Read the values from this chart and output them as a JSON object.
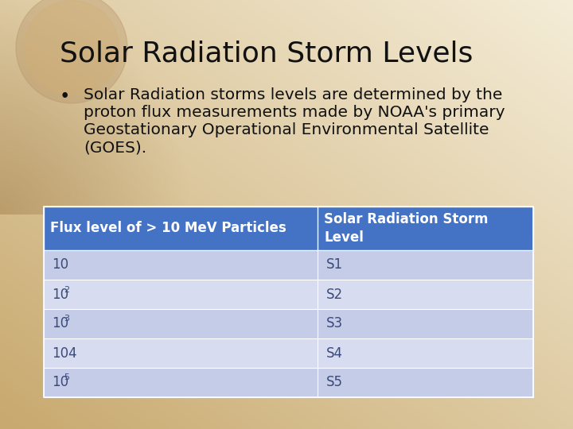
{
  "title": "Solar Radiation Storm Levels",
  "bullet_lines": [
    "Solar Radiation storms levels are determined by the",
    "proton flux measurements made by NOAA's primary",
    "Geostationary Operational Environmental Satellite",
    "(GOES)."
  ],
  "table_header": [
    "Flux level of > 10 MeV Particles",
    "Solar Radiation Storm\nLevel"
  ],
  "flux_bases": [
    "10",
    "10",
    "10",
    "104",
    "10"
  ],
  "flux_superscripts": [
    null,
    "2",
    "3",
    null,
    "5"
  ],
  "storm_levels": [
    "S1",
    "S2",
    "S3",
    "S4",
    "S5"
  ],
  "header_bg": "#4472C4",
  "header_text": "#FFFFFF",
  "row_color_a": "#C5CCE8",
  "row_color_b": "#D8DCF0",
  "table_text_color": "#3A4A7A",
  "title_color": "#111111",
  "bullet_color": "#111111",
  "bg_top_left": "#C8A96E",
  "bg_bottom_right": "#F0E8D0",
  "title_fontsize": 26,
  "bullet_fontsize": 14.5,
  "table_header_fontsize": 12,
  "table_body_fontsize": 12,
  "fig_width": 7.2,
  "fig_height": 5.4,
  "fig_dpi": 100
}
